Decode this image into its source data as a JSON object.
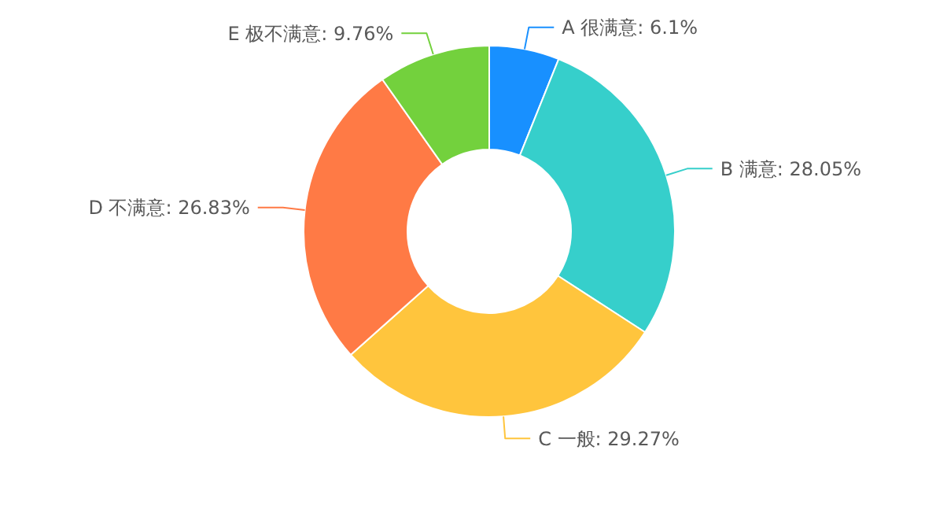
{
  "chart_data": {
    "type": "donut",
    "categories": [
      "A 很满意",
      "B 满意",
      "C 一般",
      "D 不满意",
      "E 极不满意"
    ],
    "values": [
      6.1,
      28.05,
      29.27,
      26.83,
      9.76
    ],
    "value_labels": [
      "6.1%",
      "28.05%",
      "29.27%",
      "26.83%",
      "9.76%"
    ],
    "colors": [
      "#1890ff",
      "#36cfcb",
      "#ffc53d",
      "#ff7a45",
      "#73d13d"
    ]
  }
}
